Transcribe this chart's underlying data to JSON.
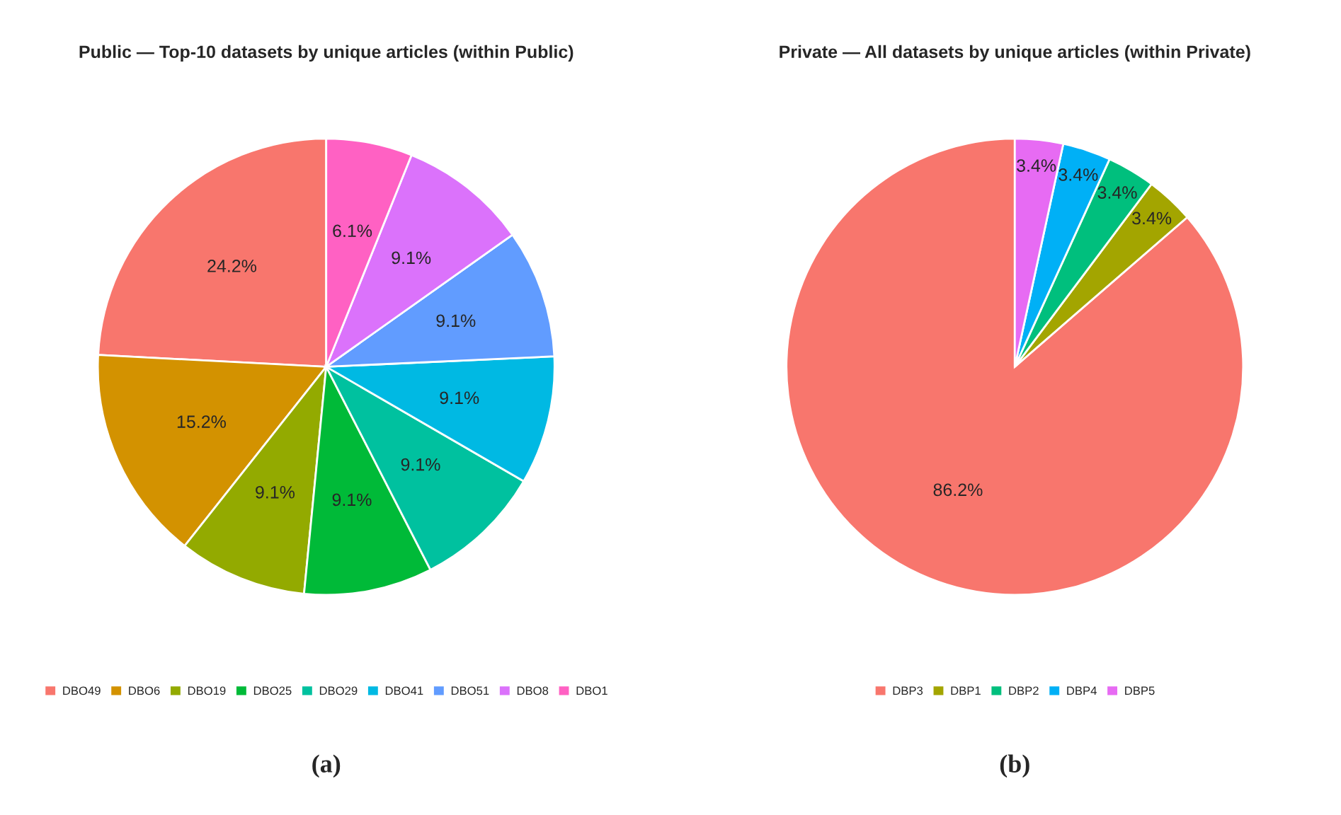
{
  "chart_data": [
    {
      "type": "pie",
      "title": "Public — Top-10 datasets by unique articles (within Public)",
      "categories": [
        "DBO49",
        "DBO6",
        "DBO19",
        "DBO25",
        "DBO29",
        "DBO41",
        "DBO51",
        "DBO8",
        "DBO1"
      ],
      "values": [
        24.2,
        15.2,
        9.1,
        9.1,
        9.1,
        9.1,
        9.1,
        9.1,
        6.1
      ],
      "colors": [
        "#f8766d",
        "#d39200",
        "#93aa00",
        "#00ba38",
        "#00c19f",
        "#00b9e3",
        "#619cff",
        "#db72fb",
        "#ff61c3"
      ],
      "value_labels": [
        "24.2%",
        "15.2%",
        "9.1%",
        "9.1%",
        "9.1%",
        "9.1%",
        "9.1%",
        "9.1%",
        "6.1%"
      ],
      "legend": "bottom",
      "annotations": [
        "(a)"
      ]
    },
    {
      "type": "pie",
      "title": "Private — All datasets by unique articles (within Private)",
      "categories": [
        "DBP3",
        "DBP1",
        "DBP2",
        "DBP4",
        "DBP5"
      ],
      "values": [
        86.2,
        3.4,
        3.4,
        3.4,
        3.4
      ],
      "colors": [
        "#f8766d",
        "#a3a500",
        "#00bf7d",
        "#00b0f6",
        "#e76bf3"
      ],
      "value_labels": [
        "86.2%",
        "3.4%",
        "3.4%",
        "3.4%",
        "3.4%"
      ],
      "legend": "bottom",
      "annotations": [
        "(b)"
      ]
    }
  ]
}
